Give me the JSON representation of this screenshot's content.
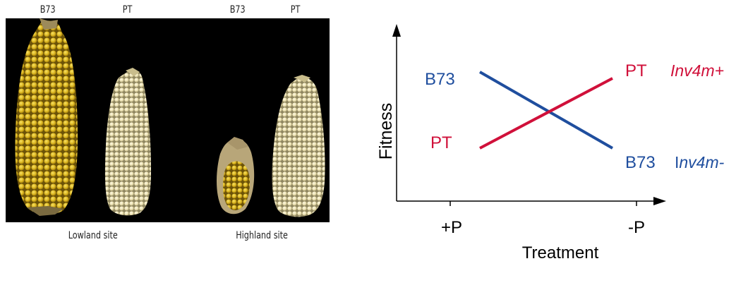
{
  "photo": {
    "top_labels": [
      "B73",
      "PT",
      "B73",
      "PT"
    ],
    "site_labels": [
      "Lowland site",
      "Highland site"
    ]
  },
  "diagram": {
    "y_axis_label": "Fitness",
    "x_axis_label": "Treatment",
    "x_ticks": [
      "+P",
      "-P"
    ],
    "left_labels": {
      "top": "B73",
      "bottom": "PT"
    },
    "right_labels": {
      "top": "PT",
      "bottom": "B73"
    },
    "allele_labels": {
      "top": "Inv4m+",
      "bottom_prefix": "I",
      "bottom_italic": "nv4m-"
    },
    "colors": {
      "b73_line": "#1f4e9e",
      "pt_line": "#d0103a",
      "axis": "#000000"
    }
  }
}
